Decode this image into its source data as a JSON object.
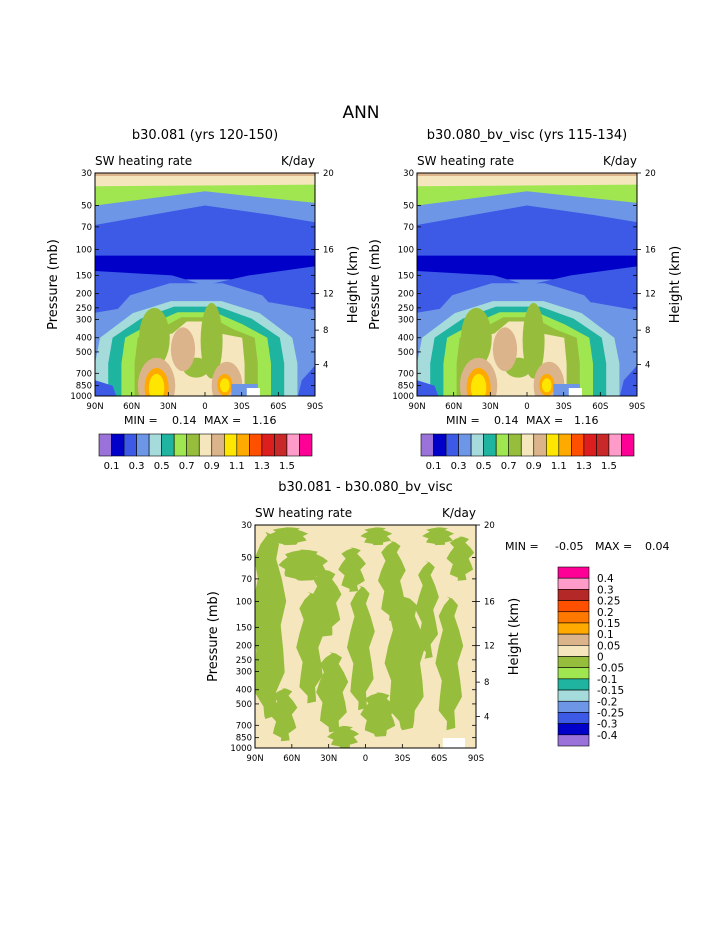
{
  "main_title": "ANN",
  "colors": {
    "panel_palette": [
      "#9b72d9",
      "#0000c8",
      "#3c5ae6",
      "#6e96e6",
      "#a6dbdb",
      "#1eb4a0",
      "#a0e650",
      "#96be3c",
      "#f5e6be",
      "#dcb48c",
      "#ffe600",
      "#ffaa00",
      "#ff5000",
      "#dc1e1e",
      "#c82828",
      "#ff9bc8",
      "#ff0096"
    ],
    "diff_palette": [
      "#9b72d9",
      "#0000c8",
      "#3c5ae6",
      "#6e96e6",
      "#a6dbdb",
      "#1eb4a0",
      "#a0e650",
      "#96be3c",
      "#f5e6be",
      "#dcb48c",
      "#ffaa00",
      "#ff7800",
      "#ff5000",
      "#b42828",
      "#ff9bc8",
      "#ff0096"
    ]
  },
  "chart_data": [
    {
      "type": "heatmap",
      "title": "b30.081 (yrs 120-150)",
      "subtitle_left": "SW heating rate",
      "subtitle_right": "K/day",
      "ylabel": "Pressure (mb)",
      "ylabel_right": "Height (km)",
      "x_ticks": [
        "90N",
        "60N",
        "30N",
        "0",
        "30S",
        "60S",
        "90S"
      ],
      "y_ticks": [
        "30",
        "50",
        "70",
        "100",
        "150",
        "200",
        "250",
        "300",
        "400",
        "500",
        "700",
        "850",
        "1000"
      ],
      "y_ticks_right": [
        "20",
        "16",
        "12",
        "8",
        "4"
      ],
      "ylim": [
        1000,
        30
      ],
      "stats": {
        "min_label": "MIN =",
        "min": "0.14",
        "max_label": "MAX =",
        "max": "1.16"
      },
      "colorbar_labels": [
        "0.1",
        "0.3",
        "0.5",
        "0.7",
        "0.9",
        "1.1",
        "1.3",
        "1.5"
      ]
    },
    {
      "type": "heatmap",
      "title": "b30.080_bv_visc (yrs 115-134)",
      "subtitle_left": "SW heating rate",
      "subtitle_right": "K/day",
      "ylabel": "Pressure (mb)",
      "ylabel_right": "Height (km)",
      "x_ticks": [
        "90N",
        "60N",
        "30N",
        "0",
        "30S",
        "60S",
        "90S"
      ],
      "y_ticks": [
        "30",
        "50",
        "70",
        "100",
        "150",
        "200",
        "250",
        "300",
        "400",
        "500",
        "700",
        "850",
        "1000"
      ],
      "y_ticks_right": [
        "20",
        "16",
        "12",
        "8",
        "4"
      ],
      "ylim": [
        1000,
        30
      ],
      "stats": {
        "min_label": "MIN =",
        "min": "0.14",
        "max_label": "MAX =",
        "max": "1.16"
      },
      "colorbar_labels": [
        "0.1",
        "0.3",
        "0.5",
        "0.7",
        "0.9",
        "1.1",
        "1.3",
        "1.5"
      ]
    },
    {
      "type": "heatmap",
      "title": "b30.081 - b30.080_bv_visc",
      "subtitle_left": "SW heating rate",
      "subtitle_right": "K/day",
      "ylabel": "Pressure (mb)",
      "ylabel_right": "Height (km)",
      "x_ticks": [
        "90N",
        "60N",
        "30N",
        "0",
        "30S",
        "60S",
        "90S"
      ],
      "y_ticks": [
        "30",
        "50",
        "70",
        "100",
        "150",
        "200",
        "250",
        "300",
        "400",
        "500",
        "700",
        "850",
        "1000"
      ],
      "y_ticks_right": [
        "20",
        "16",
        "12",
        "8",
        "4"
      ],
      "ylim": [
        1000,
        30
      ],
      "stats": {
        "min_label": "MIN =",
        "min": "-0.05",
        "max_label": "MAX =",
        "max": "0.04"
      },
      "colorbar_labels": [
        "0.4",
        "0.3",
        "0.25",
        "0.2",
        "0.15",
        "0.1",
        "0.05",
        "0",
        "-0.05",
        "-0.1",
        "-0.15",
        "-0.2",
        "-0.25",
        "-0.3",
        "-0.4"
      ]
    }
  ]
}
